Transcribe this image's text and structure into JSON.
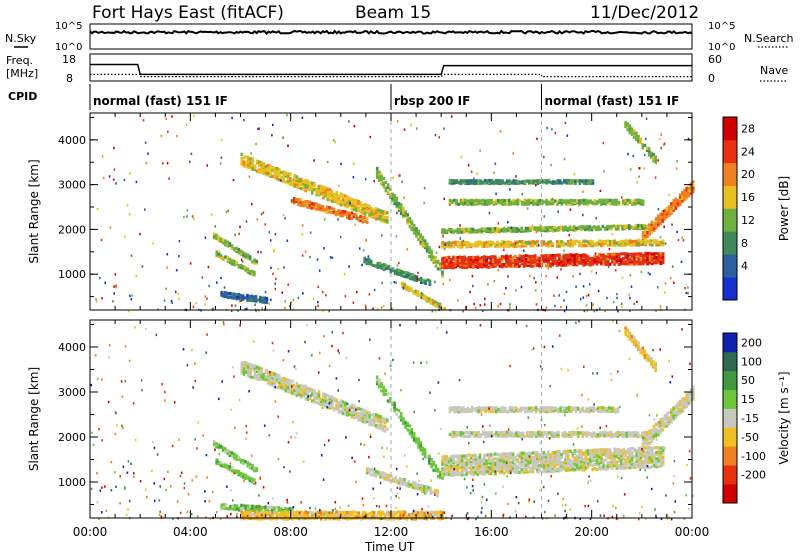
{
  "header": {
    "station": "Fort Hays East (fitACF)",
    "beam": "Beam 15",
    "date": "11/Dec/2012"
  },
  "status_panel": {
    "nsky_label": "N.Sky",
    "nsearch_label": "N.Search",
    "noise_ticks": [
      "10^5",
      "10^0"
    ],
    "freq_label_1": "Freq.",
    "freq_label_2": "[MHz]",
    "freq_ticks": [
      "18",
      "8"
    ],
    "nave_label": "Nave",
    "nave_ticks": [
      "60",
      "0"
    ],
    "cpid_label": "CPID",
    "cpid_segments": [
      {
        "label": "normal (fast) 151 IF",
        "start_h": 0,
        "end_h": 12
      },
      {
        "label": "rbsp 200 IF",
        "start_h": 12,
        "end_h": 18
      },
      {
        "label": "normal (fast) 151 IF",
        "start_h": 18,
        "end_h": 24
      }
    ],
    "freq_series": [
      {
        "t": 0,
        "f": 15.5
      },
      {
        "t": 1.9,
        "f": 15.5
      },
      {
        "t": 2.0,
        "f": 11
      },
      {
        "t": 14.0,
        "f": 11
      },
      {
        "t": 14.1,
        "f": 15.0
      },
      {
        "t": 24,
        "f": 15.0
      }
    ],
    "nave_series": [
      {
        "t": 0,
        "n": 18
      },
      {
        "t": 2.0,
        "n": 18
      },
      {
        "t": 2.0,
        "n": 12
      },
      {
        "t": 14.0,
        "n": 12
      },
      {
        "t": 14.1,
        "n": 18
      },
      {
        "t": 18,
        "n": 18
      },
      {
        "t": 18,
        "n": 12
      },
      {
        "t": 24,
        "n": 12
      }
    ]
  },
  "chart_data": [
    {
      "type": "heatmap",
      "name": "power",
      "ylabel": "Slant Range [km]",
      "yticks": [
        "1000",
        "2000",
        "3000",
        "4000"
      ],
      "ylim": [
        200,
        4600
      ],
      "xlim": [
        0,
        24
      ],
      "colorbar_label": "Power [dB]",
      "colorbar_ticks": [
        "4",
        "8",
        "12",
        "16",
        "20",
        "24",
        "28"
      ],
      "colors": [
        "#1530d0",
        "#2a5fa0",
        "#3e8a5a",
        "#6fb040",
        "#e8c020",
        "#f08020",
        "#e83010",
        "#d00000"
      ],
      "bands": [
        {
          "t0": 6.0,
          "t1": 11.8,
          "r0": 3600,
          "r1": 2300,
          "width": 260,
          "level": 4
        },
        {
          "t0": 8.0,
          "t1": 11.0,
          "r0": 2700,
          "r1": 2250,
          "width": 150,
          "level": 5
        },
        {
          "t0": 4.9,
          "t1": 6.6,
          "r0": 1900,
          "r1": 1300,
          "width": 110,
          "level": 3
        },
        {
          "t0": 5.0,
          "t1": 6.5,
          "r0": 1500,
          "r1": 1050,
          "width": 100,
          "level": 3
        },
        {
          "t0": 5.2,
          "t1": 7.0,
          "r0": 600,
          "r1": 450,
          "width": 130,
          "level": 1
        },
        {
          "t0": 11.4,
          "t1": 14.0,
          "r0": 3300,
          "r1": 1100,
          "width": 230,
          "level": 3
        },
        {
          "t0": 10.9,
          "t1": 13.5,
          "r0": 1350,
          "r1": 850,
          "width": 130,
          "level": 2
        },
        {
          "t0": 12.4,
          "t1": 14.0,
          "r0": 800,
          "r1": 300,
          "width": 110,
          "level": 4
        },
        {
          "t0": 14.0,
          "t1": 22.8,
          "r0": 1300,
          "r1": 1400,
          "width": 260,
          "level": 6
        },
        {
          "t0": 14.0,
          "t1": 22.8,
          "r0": 1700,
          "r1": 1750,
          "width": 130,
          "level": 4
        },
        {
          "t0": 14.0,
          "t1": 22.5,
          "r0": 2000,
          "r1": 2100,
          "width": 90,
          "level": 3
        },
        {
          "t0": 14.3,
          "t1": 22.0,
          "r0": 2650,
          "r1": 2650,
          "width": 110,
          "level": 3
        },
        {
          "t0": 14.3,
          "t1": 20.0,
          "r0": 3100,
          "r1": 3100,
          "width": 80,
          "level": 2
        },
        {
          "t0": 22.0,
          "t1": 24.0,
          "r0": 1900,
          "r1": 3000,
          "width": 250,
          "level": 5
        },
        {
          "t0": 21.3,
          "t1": 22.5,
          "r0": 4400,
          "r1": 3600,
          "width": 180,
          "level": 3
        }
      ]
    },
    {
      "type": "heatmap",
      "name": "velocity",
      "ylabel": "Slant Range [km]",
      "yticks": [
        "1000",
        "2000",
        "3000",
        "4000"
      ],
      "ylim": [
        200,
        4600
      ],
      "xlim": [
        0,
        24
      ],
      "xticks": [
        "00:00",
        "04:00",
        "08:00",
        "12:00",
        "16:00",
        "20:00",
        "00:00"
      ],
      "xlabel": "Time UT",
      "colorbar_label": "Velocity [m s⁻¹]",
      "colorbar_ticks": [
        "200",
        "100",
        "50",
        "15",
        "-15",
        "-50",
        "-100",
        "-200"
      ],
      "colors": [
        "#1020b0",
        "#2e6a50",
        "#3f9a3f",
        "#6cc83a",
        "#c8c8c0",
        "#f0c020",
        "#f08020",
        "#e83010",
        "#d00000"
      ],
      "bands": [
        {
          "t0": 6.0,
          "t1": 11.8,
          "r0": 3600,
          "r1": 2300,
          "width": 300,
          "level": 4
        },
        {
          "t0": 4.9,
          "t1": 6.6,
          "r0": 1900,
          "r1": 1300,
          "width": 110,
          "level": 3
        },
        {
          "t0": 5.0,
          "t1": 6.5,
          "r0": 1500,
          "r1": 1050,
          "width": 100,
          "level": 3
        },
        {
          "t0": 5.2,
          "t1": 8.0,
          "r0": 500,
          "r1": 400,
          "width": 130,
          "level": 3
        },
        {
          "t0": 11.4,
          "t1": 14.0,
          "r0": 3300,
          "r1": 1100,
          "width": 200,
          "level": 3
        },
        {
          "t0": 11.0,
          "t1": 13.8,
          "r0": 1300,
          "r1": 800,
          "width": 150,
          "level": 4
        },
        {
          "t0": 14.0,
          "t1": 22.8,
          "r0": 1400,
          "r1": 1600,
          "width": 460,
          "level": 4
        },
        {
          "t0": 14.3,
          "t1": 22.5,
          "r0": 2100,
          "r1": 2100,
          "width": 110,
          "level": 4
        },
        {
          "t0": 14.3,
          "t1": 21.0,
          "r0": 2650,
          "r1": 2650,
          "width": 110,
          "level": 4
        },
        {
          "t0": 22.0,
          "t1": 24.0,
          "r0": 1900,
          "r1": 3000,
          "width": 300,
          "level": 4
        },
        {
          "t0": 21.3,
          "t1": 22.5,
          "r0": 4400,
          "r1": 3600,
          "width": 180,
          "level": 5
        },
        {
          "t0": 6.0,
          "t1": 14.0,
          "r0": 300,
          "r1": 300,
          "width": 180,
          "level": 5
        }
      ]
    }
  ]
}
